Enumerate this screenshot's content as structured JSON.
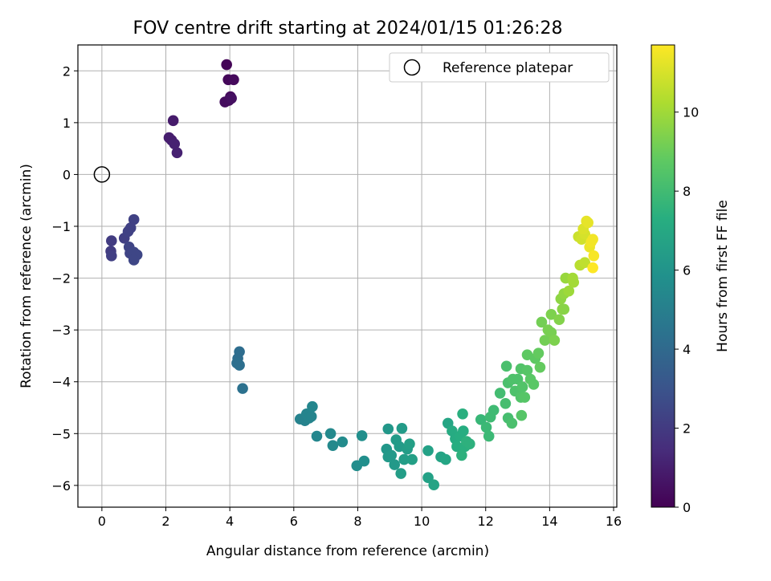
{
  "chart_data": {
    "type": "scatter",
    "title": "FOV centre drift starting at 2024/01/15 01:26:28",
    "xlabel": "Angular distance from reference (arcmin)",
    "ylabel": "Rotation from reference (arcmin)",
    "xlim": [
      -0.75,
      16.1
    ],
    "ylim": [
      -6.42,
      2.5
    ],
    "xticks": [
      0,
      2,
      4,
      6,
      8,
      10,
      12,
      14,
      16
    ],
    "yticks": [
      -6,
      -5,
      -4,
      -3,
      -2,
      -1,
      0,
      1,
      2
    ],
    "grid": true,
    "legend": {
      "position": "upper right",
      "label": "Reference platepar"
    },
    "reference_point": {
      "x": 0,
      "y": 0
    },
    "colorbar": {
      "label": "Hours from first FF file",
      "colormap": "viridis",
      "range": [
        0,
        11.7
      ],
      "ticks": [
        0,
        2,
        4,
        6,
        8,
        10
      ]
    },
    "points": [
      {
        "x": 3.9,
        "y": 2.12,
        "c": 0.1
      },
      {
        "x": 3.95,
        "y": 1.83,
        "c": 0.2
      },
      {
        "x": 4.12,
        "y": 1.83,
        "c": 0.3
      },
      {
        "x": 4.02,
        "y": 1.5,
        "c": 0.3
      },
      {
        "x": 3.85,
        "y": 1.4,
        "c": 0.4
      },
      {
        "x": 3.97,
        "y": 1.43,
        "c": 0.4
      },
      {
        "x": 4.05,
        "y": 1.47,
        "c": 0.5
      },
      {
        "x": 2.23,
        "y": 1.04,
        "c": 0.9
      },
      {
        "x": 2.1,
        "y": 0.71,
        "c": 1.0
      },
      {
        "x": 2.18,
        "y": 0.66,
        "c": 1.0
      },
      {
        "x": 2.27,
        "y": 0.59,
        "c": 1.1
      },
      {
        "x": 2.35,
        "y": 0.42,
        "c": 1.1
      },
      {
        "x": 0.3,
        "y": -1.28,
        "c": 2.1
      },
      {
        "x": 0.28,
        "y": -1.48,
        "c": 2.1
      },
      {
        "x": 0.3,
        "y": -1.57,
        "c": 2.2
      },
      {
        "x": 0.7,
        "y": -1.23,
        "c": 2.2
      },
      {
        "x": 0.82,
        "y": -1.1,
        "c": 2.3
      },
      {
        "x": 0.9,
        "y": -1.03,
        "c": 2.3
      },
      {
        "x": 1.0,
        "y": -0.87,
        "c": 2.3
      },
      {
        "x": 0.85,
        "y": -1.4,
        "c": 2.4
      },
      {
        "x": 0.88,
        "y": -1.52,
        "c": 2.4
      },
      {
        "x": 1.0,
        "y": -1.5,
        "c": 2.5
      },
      {
        "x": 1.1,
        "y": -1.55,
        "c": 2.5
      },
      {
        "x": 1.0,
        "y": -1.65,
        "c": 2.5
      },
      {
        "x": 4.3,
        "y": -3.42,
        "c": 4.2
      },
      {
        "x": 4.25,
        "y": -3.55,
        "c": 4.2
      },
      {
        "x": 4.22,
        "y": -3.64,
        "c": 4.3
      },
      {
        "x": 4.3,
        "y": -3.68,
        "c": 4.3
      },
      {
        "x": 4.4,
        "y": -4.13,
        "c": 4.4
      },
      {
        "x": 6.2,
        "y": -4.72,
        "c": 5.2
      },
      {
        "x": 6.35,
        "y": -4.75,
        "c": 5.2
      },
      {
        "x": 6.4,
        "y": -4.62,
        "c": 5.3
      },
      {
        "x": 6.48,
        "y": -4.7,
        "c": 5.3
      },
      {
        "x": 6.55,
        "y": -4.67,
        "c": 5.3
      },
      {
        "x": 6.58,
        "y": -4.48,
        "c": 5.4
      },
      {
        "x": 6.72,
        "y": -5.05,
        "c": 5.4
      },
      {
        "x": 7.15,
        "y": -5.0,
        "c": 5.5
      },
      {
        "x": 7.22,
        "y": -5.23,
        "c": 5.5
      },
      {
        "x": 7.52,
        "y": -5.16,
        "c": 5.6
      },
      {
        "x": 7.97,
        "y": -5.62,
        "c": 5.7
      },
      {
        "x": 8.13,
        "y": -5.04,
        "c": 5.8
      },
      {
        "x": 8.2,
        "y": -5.53,
        "c": 5.8
      },
      {
        "x": 8.95,
        "y": -4.91,
        "c": 6.2
      },
      {
        "x": 8.9,
        "y": -5.3,
        "c": 6.2
      },
      {
        "x": 8.95,
        "y": -5.45,
        "c": 6.3
      },
      {
        "x": 9.05,
        "y": -5.42,
        "c": 6.3
      },
      {
        "x": 9.15,
        "y": -5.6,
        "c": 6.3
      },
      {
        "x": 9.2,
        "y": -5.12,
        "c": 6.4
      },
      {
        "x": 9.3,
        "y": -5.25,
        "c": 6.4
      },
      {
        "x": 9.38,
        "y": -4.9,
        "c": 6.4
      },
      {
        "x": 9.35,
        "y": -5.77,
        "c": 6.5
      },
      {
        "x": 9.45,
        "y": -5.5,
        "c": 6.5
      },
      {
        "x": 9.55,
        "y": -5.3,
        "c": 6.5
      },
      {
        "x": 9.62,
        "y": -5.2,
        "c": 6.6
      },
      {
        "x": 9.7,
        "y": -5.5,
        "c": 6.6
      },
      {
        "x": 10.2,
        "y": -5.33,
        "c": 6.7
      },
      {
        "x": 10.2,
        "y": -5.85,
        "c": 6.7
      },
      {
        "x": 10.38,
        "y": -5.99,
        "c": 6.8
      },
      {
        "x": 10.6,
        "y": -5.45,
        "c": 6.8
      },
      {
        "x": 10.75,
        "y": -5.5,
        "c": 6.9
      },
      {
        "x": 10.82,
        "y": -4.8,
        "c": 6.9
      },
      {
        "x": 10.95,
        "y": -4.95,
        "c": 7.2
      },
      {
        "x": 11.05,
        "y": -5.1,
        "c": 7.2
      },
      {
        "x": 11.1,
        "y": -5.25,
        "c": 7.3
      },
      {
        "x": 11.2,
        "y": -5.05,
        "c": 7.3
      },
      {
        "x": 11.3,
        "y": -4.95,
        "c": 7.3
      },
      {
        "x": 11.28,
        "y": -4.62,
        "c": 7.4
      },
      {
        "x": 11.35,
        "y": -5.25,
        "c": 7.4
      },
      {
        "x": 11.4,
        "y": -5.15,
        "c": 7.5
      },
      {
        "x": 11.5,
        "y": -5.2,
        "c": 7.5
      },
      {
        "x": 11.25,
        "y": -5.42,
        "c": 7.5
      },
      {
        "x": 11.85,
        "y": -4.73,
        "c": 7.8
      },
      {
        "x": 12.02,
        "y": -4.88,
        "c": 7.9
      },
      {
        "x": 12.1,
        "y": -5.05,
        "c": 7.9
      },
      {
        "x": 12.15,
        "y": -4.68,
        "c": 8.0
      },
      {
        "x": 12.25,
        "y": -4.55,
        "c": 8.0
      },
      {
        "x": 12.45,
        "y": -4.22,
        "c": 8.1
      },
      {
        "x": 12.62,
        "y": -4.42,
        "c": 8.2
      },
      {
        "x": 12.7,
        "y": -4.7,
        "c": 8.2
      },
      {
        "x": 12.82,
        "y": -4.8,
        "c": 8.3
      },
      {
        "x": 12.65,
        "y": -3.7,
        "c": 8.3
      },
      {
        "x": 12.7,
        "y": -4.02,
        "c": 8.3
      },
      {
        "x": 12.85,
        "y": -3.95,
        "c": 8.4
      },
      {
        "x": 12.92,
        "y": -4.18,
        "c": 8.4
      },
      {
        "x": 13.0,
        "y": -3.95,
        "c": 8.4
      },
      {
        "x": 13.1,
        "y": -3.75,
        "c": 8.5
      },
      {
        "x": 13.1,
        "y": -4.3,
        "c": 8.5
      },
      {
        "x": 13.15,
        "y": -4.1,
        "c": 8.5
      },
      {
        "x": 13.22,
        "y": -4.3,
        "c": 8.6
      },
      {
        "x": 13.3,
        "y": -3.78,
        "c": 8.6
      },
      {
        "x": 13.12,
        "y": -4.65,
        "c": 8.6
      },
      {
        "x": 13.4,
        "y": -3.95,
        "c": 8.7
      },
      {
        "x": 13.5,
        "y": -4.05,
        "c": 8.7
      },
      {
        "x": 13.3,
        "y": -3.48,
        "c": 8.8
      },
      {
        "x": 13.55,
        "y": -3.55,
        "c": 8.8
      },
      {
        "x": 13.65,
        "y": -3.45,
        "c": 8.9
      },
      {
        "x": 13.7,
        "y": -3.72,
        "c": 8.9
      },
      {
        "x": 13.75,
        "y": -2.85,
        "c": 9.2
      },
      {
        "x": 13.85,
        "y": -3.2,
        "c": 9.2
      },
      {
        "x": 13.95,
        "y": -3.0,
        "c": 9.3
      },
      {
        "x": 14.05,
        "y": -3.05,
        "c": 9.3
      },
      {
        "x": 14.15,
        "y": -3.2,
        "c": 9.4
      },
      {
        "x": 14.05,
        "y": -2.7,
        "c": 9.4
      },
      {
        "x": 14.3,
        "y": -2.8,
        "c": 9.5
      },
      {
        "x": 14.4,
        "y": -2.6,
        "c": 9.6
      },
      {
        "x": 14.45,
        "y": -2.6,
        "c": 9.6
      },
      {
        "x": 14.35,
        "y": -2.4,
        "c": 9.7
      },
      {
        "x": 14.45,
        "y": -2.3,
        "c": 9.8
      },
      {
        "x": 14.5,
        "y": -2.0,
        "c": 9.9
      },
      {
        "x": 14.6,
        "y": -2.25,
        "c": 10.0
      },
      {
        "x": 14.75,
        "y": -2.08,
        "c": 10.1
      },
      {
        "x": 14.72,
        "y": -2.0,
        "c": 10.1
      },
      {
        "x": 14.95,
        "y": -1.75,
        "c": 10.5
      },
      {
        "x": 15.1,
        "y": -1.7,
        "c": 10.6
      },
      {
        "x": 14.9,
        "y": -1.2,
        "c": 10.8
      },
      {
        "x": 15.0,
        "y": -1.25,
        "c": 10.9
      },
      {
        "x": 15.1,
        "y": -1.15,
        "c": 11.0
      },
      {
        "x": 15.05,
        "y": -1.05,
        "c": 11.1
      },
      {
        "x": 15.15,
        "y": -0.9,
        "c": 11.3
      },
      {
        "x": 15.2,
        "y": -0.93,
        "c": 11.3
      },
      {
        "x": 15.25,
        "y": -1.4,
        "c": 11.4
      },
      {
        "x": 15.35,
        "y": -1.25,
        "c": 11.5
      },
      {
        "x": 15.3,
        "y": -1.3,
        "c": 11.5
      },
      {
        "x": 15.38,
        "y": -1.57,
        "c": 11.6
      },
      {
        "x": 15.35,
        "y": -1.8,
        "c": 11.7
      }
    ]
  }
}
